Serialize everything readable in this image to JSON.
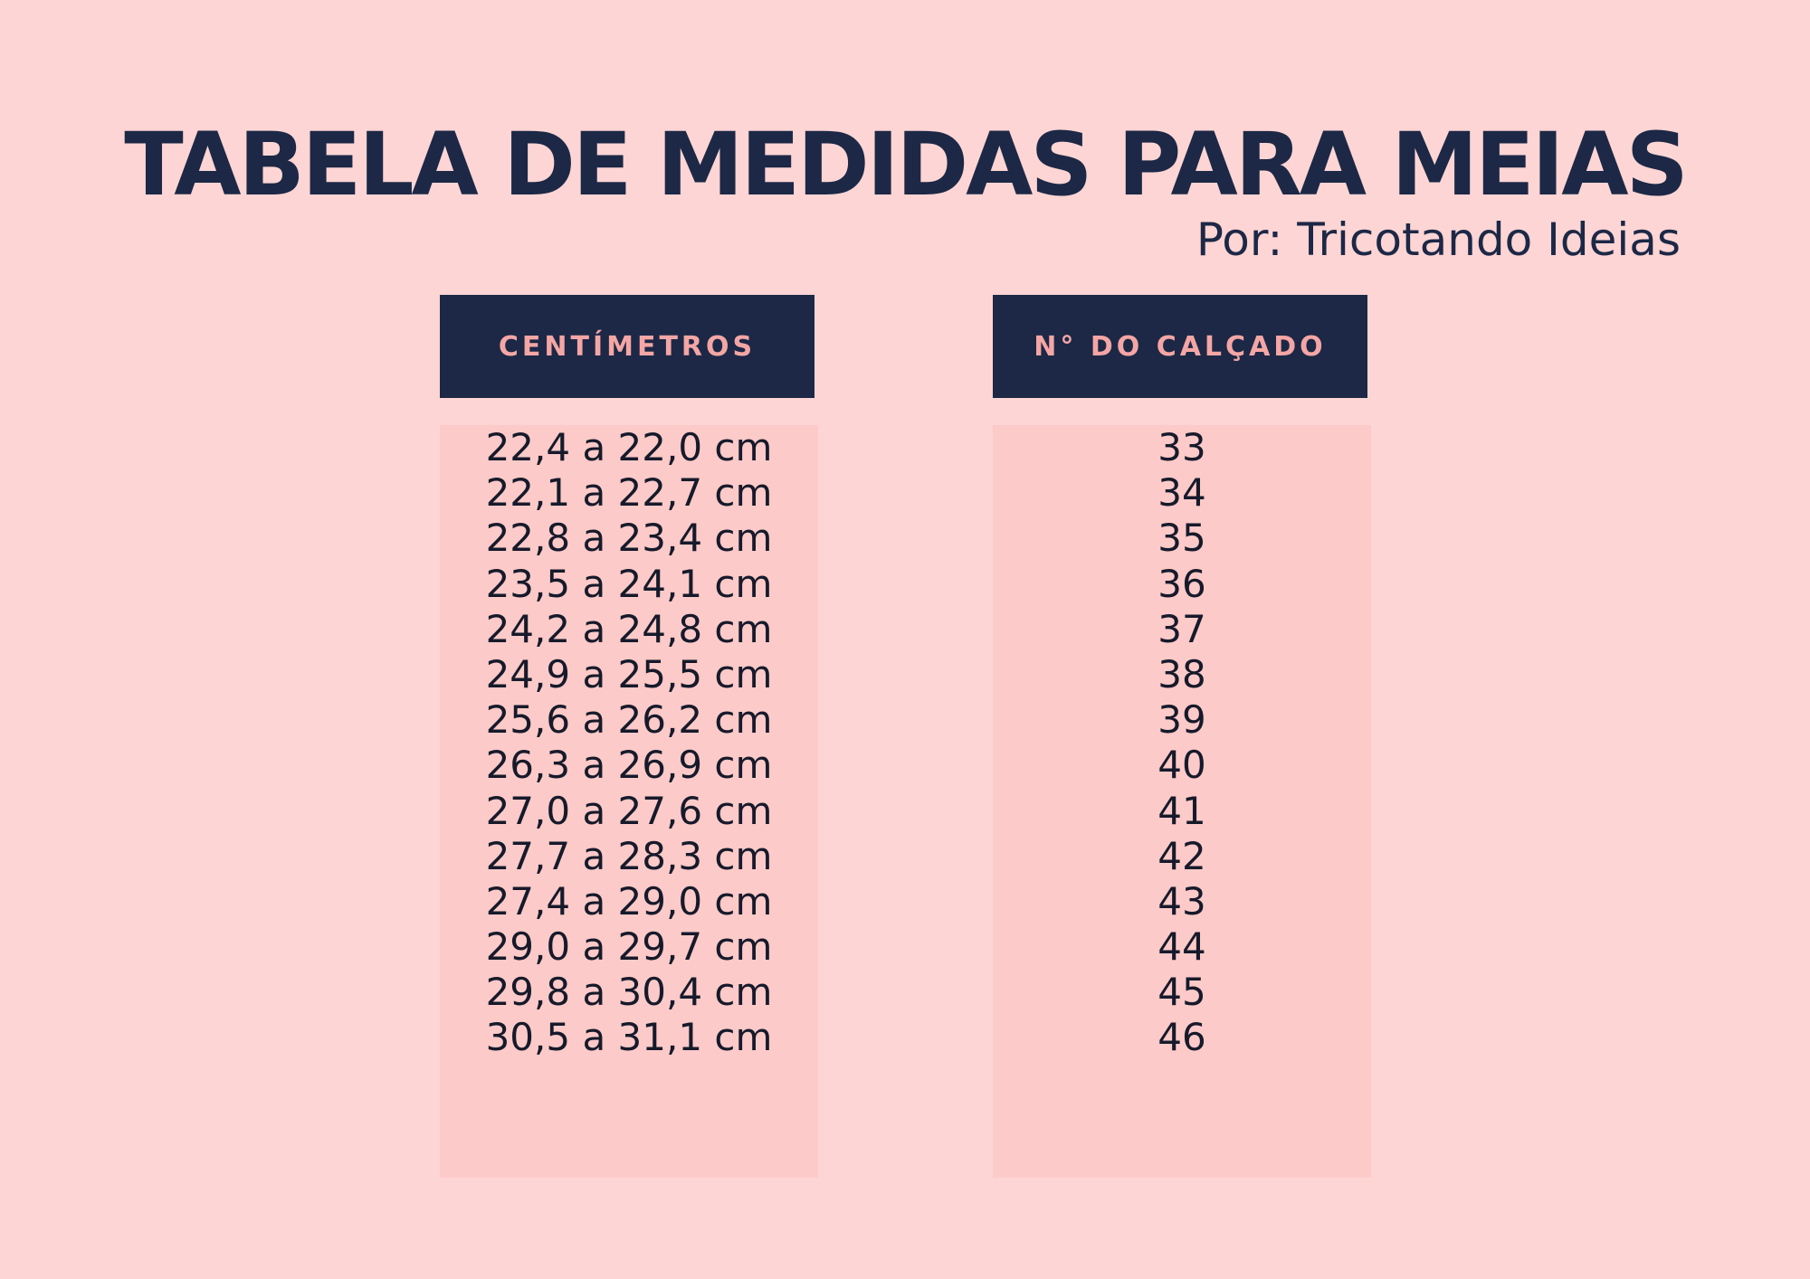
{
  "title": "TABELA DE MEDIDAS PARA MEIAS",
  "subtitle": "Por: Tricotando Ideias",
  "colors": {
    "background": "#fdd5d4",
    "header_bg": "#1c2846",
    "header_text": "#f4a6a5",
    "column_bg": "#fccac8",
    "text": "#161a2b"
  },
  "columns": {
    "left": {
      "header": "CENTÍMETROS",
      "values": [
        "22,4 a 22,0 cm",
        "22,1 a 22,7 cm",
        "22,8 a 23,4 cm",
        "23,5 a 24,1 cm",
        "24,2 a 24,8 cm",
        "24,9 a 25,5 cm",
        "25,6 a 26,2 cm",
        "26,3 a 26,9 cm",
        "27,0 a 27,6 cm",
        "27,7 a 28,3 cm",
        "27,4 a 29,0 cm",
        "29,0 a 29,7 cm",
        "29,8 a 30,4 cm",
        "30,5 a 31,1 cm"
      ]
    },
    "right": {
      "header": "N° DO CALÇADO",
      "values": [
        "33",
        "34",
        "35",
        "36",
        "37",
        "38",
        "39",
        "40",
        "41",
        "42",
        "43",
        "44",
        "45",
        "46"
      ]
    }
  }
}
